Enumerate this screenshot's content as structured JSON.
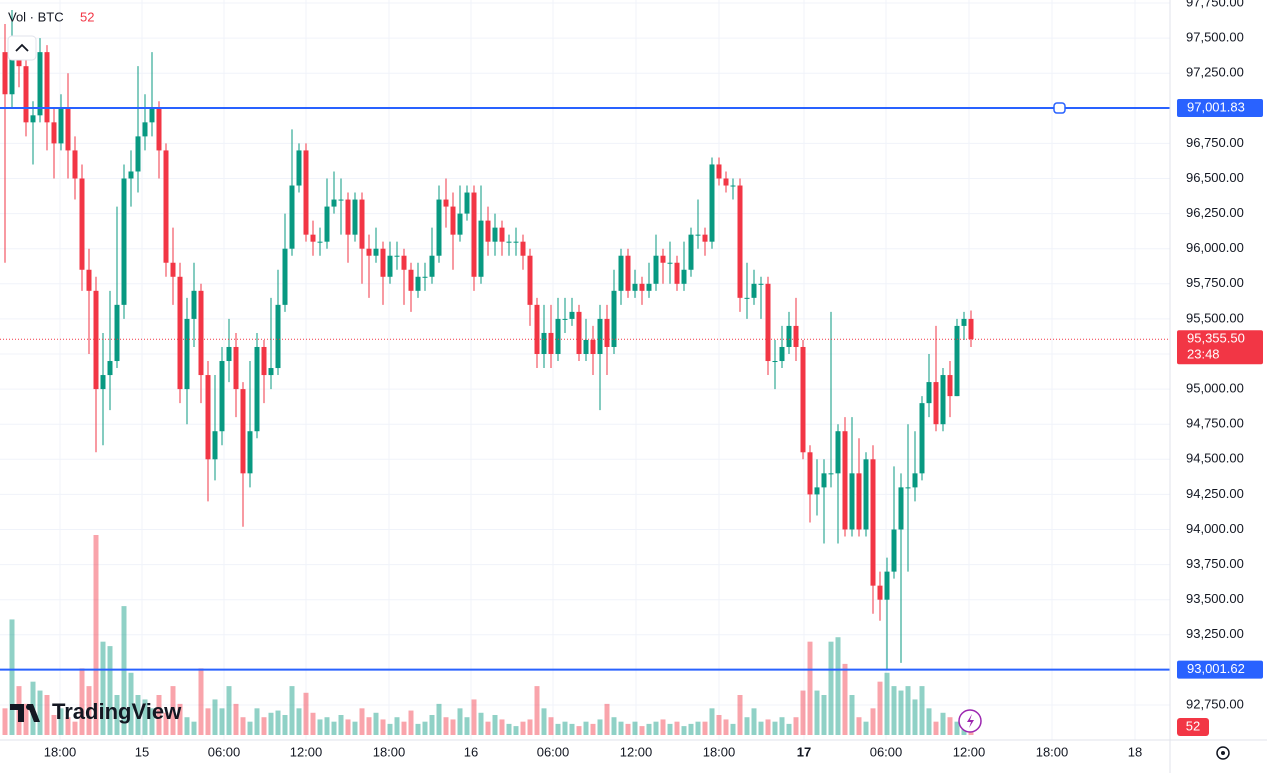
{
  "chart_data": {
    "type": "candlestick",
    "indicator": "Vol · BTC",
    "brand": "TradingView",
    "up_color": "#089981",
    "down_color": "#f23645",
    "line_color": "#2962ff",
    "ylim": [
      92750,
      97750
    ],
    "yticks": [
      {
        "value": 92750,
        "label": "92,750.00"
      },
      {
        "value": 93000,
        "label": "93,000.00"
      },
      {
        "value": 93250,
        "label": "93,250.00"
      },
      {
        "value": 93500,
        "label": "93,500.00"
      },
      {
        "value": 93750,
        "label": "93,750.00"
      },
      {
        "value": 94000,
        "label": "94,000.00"
      },
      {
        "value": 94250,
        "label": "94,250.00"
      },
      {
        "value": 94500,
        "label": "94,500.00"
      },
      {
        "value": 94750,
        "label": "94,750.00"
      },
      {
        "value": 95000,
        "label": "95,000.00"
      },
      {
        "value": 95250,
        "label": "95,250.00"
      },
      {
        "value": 95500,
        "label": "95,500.00"
      },
      {
        "value": 95750,
        "label": "95,750.00"
      },
      {
        "value": 96000,
        "label": "96,000.00"
      },
      {
        "value": 96250,
        "label": "96,250.00"
      },
      {
        "value": 96500,
        "label": "96,500.00"
      },
      {
        "value": 96750,
        "label": "96,750.00"
      },
      {
        "value": 97000,
        "label": "97,000.00"
      },
      {
        "value": 97250,
        "label": "97,250.00"
      },
      {
        "value": 97500,
        "label": "97,500.00"
      },
      {
        "value": 97750,
        "label": "97,750.00"
      }
    ],
    "time_labels": [
      "18:00",
      "15",
      "06:00",
      "12:00",
      "18:00",
      "16",
      "06:00",
      "12:00",
      "18:00",
      "17",
      "06:00",
      "12:00",
      "18:00",
      "18"
    ],
    "hlines": [
      {
        "value": 97001.83,
        "label": "97,001.83"
      },
      {
        "value": 93001.62,
        "label": "93,001.62"
      }
    ],
    "last_price": {
      "value": 95355.5,
      "label": "95,355.50"
    },
    "countdown": "23:48",
    "candles": [
      [
        97400,
        97600,
        95900,
        97100
      ],
      [
        97100,
        97700,
        97000,
        97400
      ],
      [
        97400,
        97500,
        97150,
        97300
      ],
      [
        97300,
        97350,
        96800,
        96900
      ],
      [
        96900,
        97050,
        96600,
        96950
      ],
      [
        96950,
        97500,
        96900,
        97400
      ],
      [
        97400,
        97450,
        96700,
        96900
      ],
      [
        96900,
        97000,
        96500,
        96750
      ],
      [
        96750,
        97100,
        96700,
        97000
      ],
      [
        97000,
        97250,
        96500,
        96700
      ],
      [
        96700,
        96800,
        96350,
        96500
      ],
      [
        96500,
        96600,
        95700,
        95850
      ],
      [
        95850,
        96000,
        95250,
        95700
      ],
      [
        95700,
        95800,
        94550,
        95000
      ],
      [
        95000,
        95400,
        94600,
        95100
      ],
      [
        95100,
        95700,
        94850,
        95200
      ],
      [
        95200,
        96300,
        95150,
        95600
      ],
      [
        95600,
        96600,
        95500,
        96500
      ],
      [
        96500,
        96700,
        96300,
        96550
      ],
      [
        96550,
        97300,
        96400,
        96800
      ],
      [
        96800,
        97100,
        96700,
        96900
      ],
      [
        96900,
        97400,
        96800,
        97000
      ],
      [
        97000,
        97050,
        96500,
        96700
      ],
      [
        96700,
        96750,
        95800,
        95900
      ],
      [
        95900,
        96150,
        95600,
        95800
      ],
      [
        95800,
        95900,
        94900,
        95000
      ],
      [
        95000,
        95650,
        94750,
        95500
      ],
      [
        95500,
        95900,
        95300,
        95700
      ],
      [
        95700,
        95750,
        94900,
        95100
      ],
      [
        95100,
        95200,
        94200,
        94500
      ],
      [
        94500,
        95100,
        94350,
        94700
      ],
      [
        94700,
        95300,
        94600,
        95200
      ],
      [
        95200,
        95500,
        95050,
        95300
      ],
      [
        95300,
        95400,
        94800,
        95000
      ],
      [
        95000,
        95050,
        94020,
        94400
      ],
      [
        94400,
        95200,
        94300,
        94700
      ],
      [
        94700,
        95400,
        94650,
        95300
      ],
      [
        95300,
        95350,
        94900,
        95100
      ],
      [
        95100,
        95650,
        95000,
        95150
      ],
      [
        95150,
        95850,
        95100,
        95600
      ],
      [
        95600,
        96250,
        95550,
        96000
      ],
      [
        96000,
        96850,
        95950,
        96450
      ],
      [
        96450,
        96750,
        96400,
        96700
      ],
      [
        96700,
        96750,
        96050,
        96100
      ],
      [
        96100,
        96200,
        95950,
        96050
      ],
      [
        96050,
        96150,
        95950,
        96050
      ],
      [
        96050,
        96500,
        96000,
        96300
      ],
      [
        96300,
        96550,
        96250,
        96350
      ],
      [
        96350,
        96500,
        96100,
        96350
      ],
      [
        96350,
        96400,
        95900,
        96100
      ],
      [
        96100,
        96400,
        96050,
        96350
      ],
      [
        96350,
        96400,
        95750,
        96000
      ],
      [
        96000,
        96100,
        95650,
        95950
      ],
      [
        95950,
        96150,
        95900,
        96000
      ],
      [
        96000,
        96050,
        95600,
        95800
      ],
      [
        95800,
        96050,
        95750,
        95950
      ],
      [
        95950,
        96050,
        95850,
        95950
      ],
      [
        95950,
        96000,
        95600,
        95850
      ],
      [
        95850,
        95900,
        95550,
        95700
      ],
      [
        95700,
        95900,
        95650,
        95800
      ],
      [
        95800,
        95900,
        95700,
        95800
      ],
      [
        95800,
        96150,
        95750,
        95950
      ],
      [
        95950,
        96450,
        95900,
        96350
      ],
      [
        96350,
        96500,
        96150,
        96300
      ],
      [
        96300,
        96400,
        95850,
        96100
      ],
      [
        96100,
        96450,
        96050,
        96250
      ],
      [
        96250,
        96450,
        96200,
        96400
      ],
      [
        96400,
        96450,
        95700,
        95800
      ],
      [
        95800,
        96450,
        95750,
        96200
      ],
      [
        96200,
        96300,
        95950,
        96050
      ],
      [
        96050,
        96250,
        95950,
        96150
      ],
      [
        96150,
        96200,
        95950,
        96050
      ],
      [
        96050,
        96100,
        95950,
        96050
      ],
      [
        96050,
        96150,
        95950,
        96050
      ],
      [
        96050,
        96100,
        95850,
        95950
      ],
      [
        95950,
        96000,
        95450,
        95600
      ],
      [
        95600,
        95650,
        95150,
        95250
      ],
      [
        95250,
        95600,
        95150,
        95400
      ],
      [
        95400,
        95600,
        95150,
        95250
      ],
      [
        95250,
        95650,
        95200,
        95500
      ],
      [
        95500,
        95650,
        95400,
        95500
      ],
      [
        95500,
        95650,
        95450,
        95550
      ],
      [
        95550,
        95600,
        95200,
        95250
      ],
      [
        95250,
        95500,
        95200,
        95350
      ],
      [
        95350,
        95450,
        95100,
        95250
      ],
      [
        95250,
        95600,
        94850,
        95500
      ],
      [
        95500,
        95600,
        95100,
        95300
      ],
      [
        95300,
        95850,
        95250,
        95700
      ],
      [
        95700,
        96000,
        95600,
        95950
      ],
      [
        95950,
        96000,
        95650,
        95700
      ],
      [
        95700,
        95850,
        95650,
        95750
      ],
      [
        95750,
        95800,
        95600,
        95700
      ],
      [
        95700,
        95900,
        95650,
        95750
      ],
      [
        95750,
        96100,
        95700,
        95950
      ],
      [
        95950,
        96000,
        95750,
        95900
      ],
      [
        95900,
        96050,
        95750,
        95900
      ],
      [
        95900,
        95950,
        95700,
        95750
      ],
      [
        95750,
        96050,
        95700,
        95850
      ],
      [
        95850,
        96150,
        95800,
        96100
      ],
      [
        96100,
        96350,
        96000,
        96100
      ],
      [
        96100,
        96150,
        95950,
        96050
      ],
      [
        96050,
        96650,
        96000,
        96600
      ],
      [
        96600,
        96650,
        96450,
        96500
      ],
      [
        96500,
        96550,
        96400,
        96450
      ],
      [
        96450,
        96500,
        96350,
        96450
      ],
      [
        96450,
        96500,
        95550,
        95650
      ],
      [
        95650,
        95900,
        95500,
        95650
      ],
      [
        95650,
        95850,
        95600,
        95750
      ],
      [
        95750,
        95800,
        95500,
        95750
      ],
      [
        95750,
        95800,
        95100,
        95200
      ],
      [
        95200,
        95350,
        95000,
        95200
      ],
      [
        95200,
        95450,
        95150,
        95300
      ],
      [
        95300,
        95550,
        95250,
        95450
      ],
      [
        95450,
        95650,
        95200,
        95300
      ],
      [
        95300,
        95350,
        94500,
        94550
      ],
      [
        94550,
        94600,
        94050,
        94250
      ],
      [
        94250,
        94500,
        94100,
        94300
      ],
      [
        94300,
        94500,
        93900,
        94400
      ],
      [
        94400,
        95550,
        94300,
        94400
      ],
      [
        94400,
        94750,
        93900,
        94700
      ],
      [
        94700,
        94800,
        93950,
        94000
      ],
      [
        94000,
        94800,
        93950,
        94400
      ],
      [
        94400,
        94650,
        93950,
        94000
      ],
      [
        94000,
        94550,
        93950,
        94500
      ],
      [
        94500,
        94600,
        93400,
        93600
      ],
      [
        93600,
        93700,
        93350,
        93500
      ],
      [
        93500,
        93800,
        93000,
        93700
      ],
      [
        93700,
        94450,
        93650,
        94000
      ],
      [
        94000,
        94400,
        93050,
        94300
      ],
      [
        94300,
        94750,
        93700,
        94300
      ],
      [
        94300,
        94700,
        94200,
        94400
      ],
      [
        94400,
        94950,
        94350,
        94900
      ],
      [
        94900,
        95250,
        94800,
        95050
      ],
      [
        95050,
        95450,
        94700,
        94750
      ],
      [
        94750,
        95150,
        94700,
        95100
      ],
      [
        95100,
        95200,
        94800,
        94950
      ],
      [
        94950,
        95500,
        94950,
        95450
      ],
      [
        95450,
        95550,
        95350,
        95500
      ],
      [
        95500,
        95560,
        95300,
        95355.5
      ]
    ],
    "volume": [
      60,
      260,
      110,
      70,
      120,
      100,
      90,
      45,
      60,
      40,
      30,
      150,
      110,
      450,
      210,
      200,
      90,
      290,
      140,
      90,
      80,
      60,
      90,
      50,
      110,
      70,
      40,
      30,
      150,
      60,
      80,
      60,
      110,
      70,
      40,
      30,
      60,
      40,
      50,
      55,
      45,
      110,
      60,
      95,
      50,
      35,
      40,
      30,
      45,
      35,
      30,
      60,
      40,
      50,
      35,
      25,
      40,
      30,
      55,
      25,
      30,
      45,
      70,
      40,
      35,
      60,
      40,
      80,
      50,
      30,
      45,
      35,
      25,
      20,
      30,
      35,
      110,
      60,
      40,
      25,
      30,
      25,
      20,
      30,
      25,
      35,
      70,
      40,
      30,
      25,
      30,
      20,
      25,
      30,
      35,
      25,
      30,
      20,
      25,
      30,
      30,
      60,
      45,
      35,
      25,
      90,
      40,
      60,
      30,
      35,
      30,
      40,
      25,
      40,
      100,
      210,
      100,
      90,
      210,
      220,
      160,
      90,
      40,
      30,
      60,
      120,
      140,
      110,
      100,
      110,
      80,
      110,
      60,
      30,
      50,
      40,
      30,
      50,
      52
    ]
  }
}
